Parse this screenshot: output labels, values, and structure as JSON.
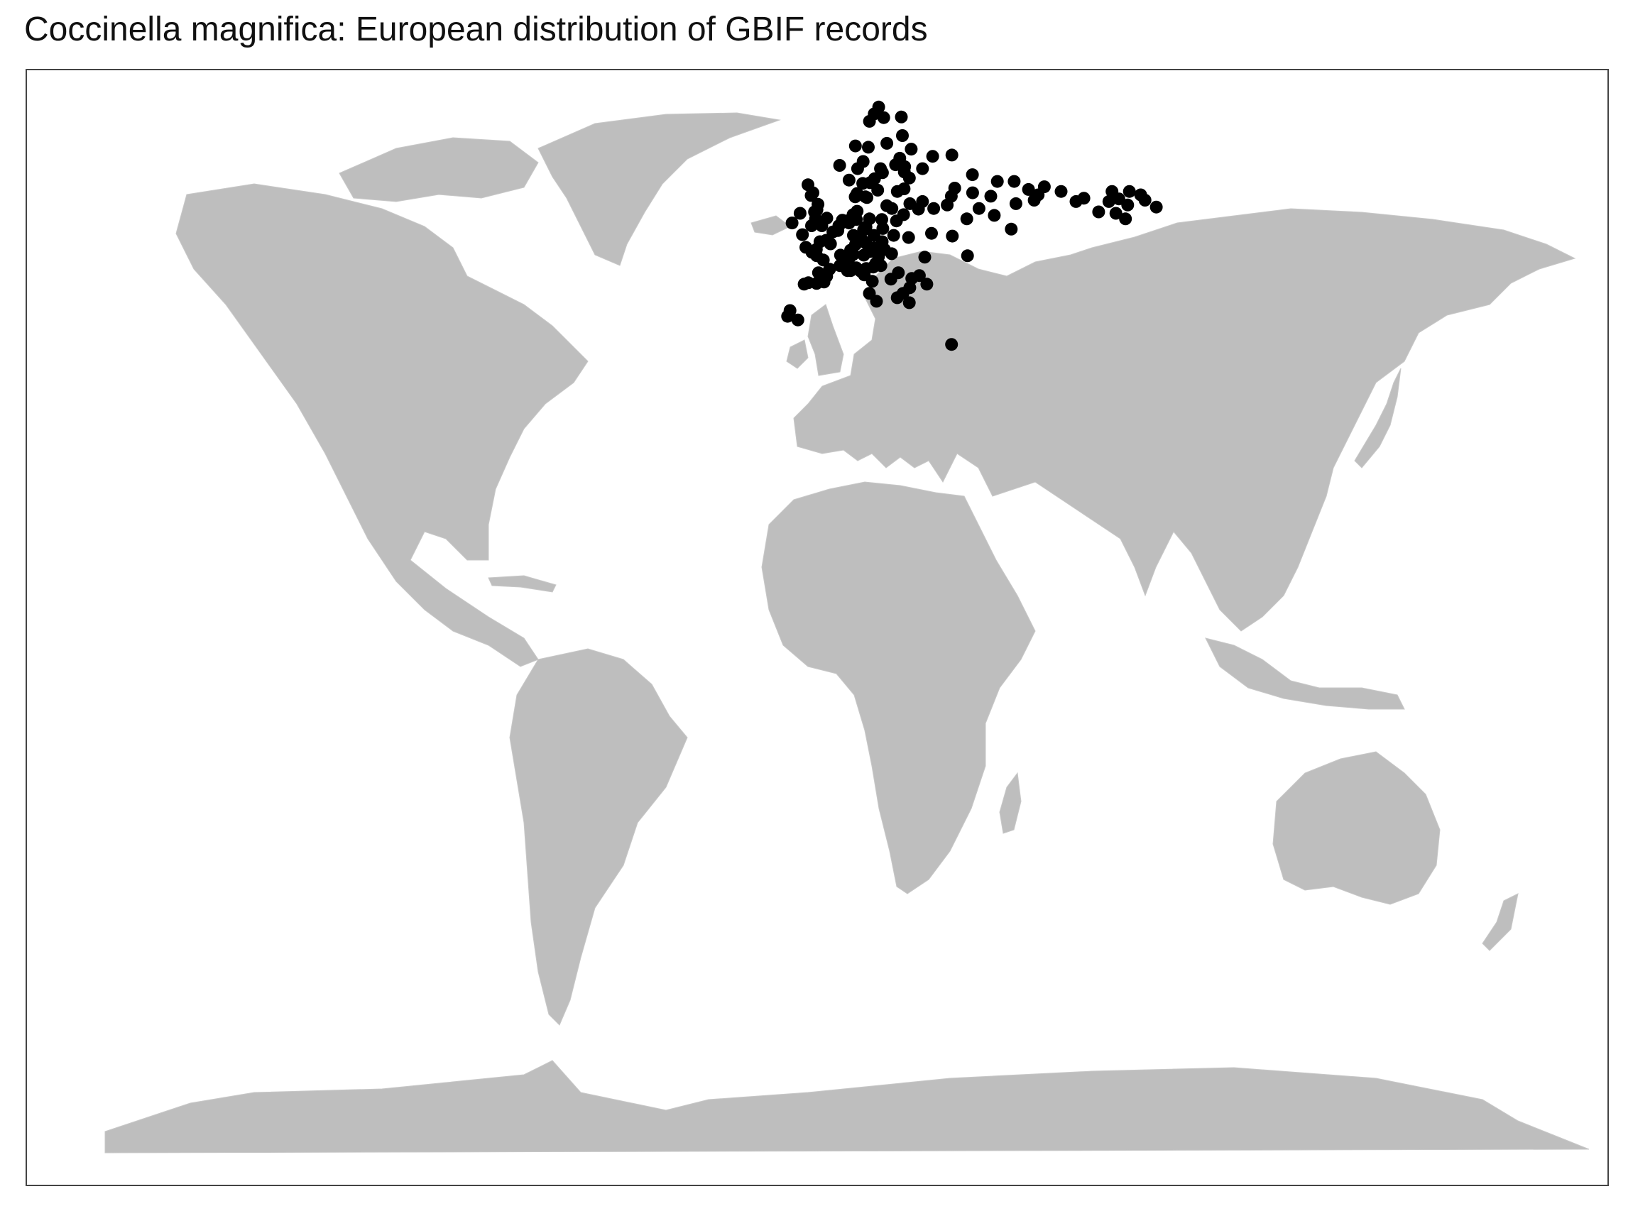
{
  "title": "Coccinella magnifica: European distribution of GBIF records",
  "colors": {
    "land": "#bebebe",
    "points": "#000000",
    "frame": "#444444",
    "background": "#ffffff"
  },
  "projection": "robinson",
  "chart_data": {
    "type": "scatter",
    "title": "Coccinella magnifica: European distribution of GBIF records",
    "xlabel": "",
    "ylabel": "",
    "grid": false,
    "legend": "none",
    "points_lonlat": [
      [
        -9.0,
        38.7
      ],
      [
        -8.4,
        39.5
      ],
      [
        -6.3,
        38.2
      ],
      [
        -4.8,
        43.2
      ],
      [
        -3.7,
        43.4
      ],
      [
        -1.5,
        43.3
      ],
      [
        -1.0,
        44.8
      ],
      [
        0.5,
        43.5
      ],
      [
        1.2,
        44.3
      ],
      [
        2.0,
        45.3
      ],
      [
        0.3,
        46.6
      ],
      [
        -1.5,
        47.2
      ],
      [
        -2.8,
        47.7
      ],
      [
        -4.5,
        48.4
      ],
      [
        -1.6,
        48.1
      ],
      [
        -0.6,
        49.2
      ],
      [
        1.1,
        49.4
      ],
      [
        2.3,
        48.9
      ],
      [
        3.0,
        50.6
      ],
      [
        4.4,
        50.8
      ],
      [
        4.7,
        51.5
      ],
      [
        5.7,
        52.3
      ],
      [
        6.9,
        52.2
      ],
      [
        7.6,
        51.9
      ],
      [
        8.7,
        50.1
      ],
      [
        9.2,
        48.8
      ],
      [
        7.8,
        48.0
      ],
      [
        8.5,
        47.4
      ],
      [
        7.4,
        46.9
      ],
      [
        6.1,
        46.2
      ],
      [
        5.0,
        47.3
      ],
      [
        4.8,
        45.8
      ],
      [
        6.8,
        45.1
      ],
      [
        7.7,
        45.1
      ],
      [
        9.2,
        45.5
      ],
      [
        10.4,
        45.0
      ],
      [
        11.3,
        44.5
      ],
      [
        11.9,
        45.4
      ],
      [
        12.5,
        41.9
      ],
      [
        14.3,
        40.8
      ],
      [
        13.4,
        43.6
      ],
      [
        11.4,
        47.3
      ],
      [
        13.0,
        47.8
      ],
      [
        14.3,
        48.3
      ],
      [
        16.4,
        48.2
      ],
      [
        15.4,
        47.1
      ],
      [
        14.5,
        46.1
      ],
      [
        13.8,
        45.6
      ],
      [
        12.3,
        51.3
      ],
      [
        13.4,
        52.5
      ],
      [
        11.6,
        50.9
      ],
      [
        10.0,
        53.6
      ],
      [
        8.8,
        53.1
      ],
      [
        9.7,
        52.4
      ],
      [
        11.0,
        49.5
      ],
      [
        12.1,
        49.0
      ],
      [
        14.4,
        50.1
      ],
      [
        16.6,
        49.2
      ],
      [
        17.1,
        48.1
      ],
      [
        19.0,
        47.5
      ],
      [
        21.0,
        52.2
      ],
      [
        19.9,
        50.1
      ],
      [
        17.0,
        51.1
      ],
      [
        16.9,
        52.4
      ],
      [
        18.6,
        54.4
      ],
      [
        23.2,
        53.1
      ],
      [
        25.3,
        54.7
      ],
      [
        24.1,
        56.9
      ],
      [
        24.7,
        59.4
      ],
      [
        25.0,
        60.2
      ],
      [
        22.3,
        60.5
      ],
      [
        23.8,
        61.5
      ],
      [
        27.7,
        62.9
      ],
      [
        25.5,
        65.0
      ],
      [
        26.0,
        68.0
      ],
      [
        20.3,
        63.8
      ],
      [
        18.1,
        59.3
      ],
      [
        17.6,
        59.9
      ],
      [
        16.3,
        56.7
      ],
      [
        15.6,
        58.4
      ],
      [
        13.0,
        55.6
      ],
      [
        14.2,
        57.8
      ],
      [
        12.0,
        57.7
      ],
      [
        10.7,
        59.9
      ],
      [
        10.4,
        63.4
      ],
      [
        5.3,
        60.4
      ],
      [
        8.0,
        58.2
      ],
      [
        9.6,
        55.7
      ],
      [
        12.6,
        55.7
      ],
      [
        10.2,
        56.2
      ],
      [
        12.5,
        61.0
      ],
      [
        14.4,
        63.2
      ],
      [
        15.4,
        67.3
      ],
      [
        18.9,
        69.6
      ],
      [
        17.2,
        68.5
      ],
      [
        20.2,
        67.9
      ],
      [
        -0.1,
        51.5
      ],
      [
        -1.9,
        52.5
      ],
      [
        -2.2,
        53.5
      ],
      [
        -1.5,
        53.8
      ],
      [
        -3.2,
        55.9
      ],
      [
        -4.2,
        57.5
      ],
      [
        -3.0,
        51.5
      ],
      [
        -5.5,
        50.2
      ],
      [
        -6.3,
        53.3
      ],
      [
        -8.5,
        51.9
      ],
      [
        1.3,
        52.6
      ],
      [
        -1.2,
        54.6
      ],
      [
        -2.7,
        56.3
      ],
      [
        30.3,
        59.9
      ],
      [
        37.6,
        55.8
      ],
      [
        44.0,
        56.3
      ],
      [
        49.1,
        55.8
      ],
      [
        55.9,
        54.7
      ],
      [
        60.6,
        56.8
      ],
      [
        61.4,
        55.2
      ],
      [
        65.5,
        57.2
      ],
      [
        73.4,
        55.0
      ],
      [
        76.0,
        55.5
      ],
      [
        82.9,
        55.0
      ],
      [
        84.9,
        56.5
      ],
      [
        86.1,
        55.4
      ],
      [
        83.8,
        53.3
      ],
      [
        86.0,
        52.5
      ],
      [
        92.9,
        56.0
      ],
      [
        93.5,
        55.2
      ],
      [
        96.0,
        54.2
      ],
      [
        39.7,
        47.2
      ],
      [
        36.2,
        50.0
      ],
      [
        30.5,
        50.4
      ],
      [
        24.0,
        49.8
      ],
      [
        28.0,
        47.0
      ],
      [
        26.1,
        44.4
      ],
      [
        23.3,
        42.7
      ],
      [
        21.4,
        41.9
      ],
      [
        22.9,
        40.6
      ],
      [
        33.1,
        34.8
      ],
      [
        40.0,
        62.0
      ],
      [
        34.0,
        61.8
      ],
      [
        39.0,
        57.0
      ],
      [
        45.0,
        59.0
      ],
      [
        52.0,
        58.0
      ],
      [
        57.0,
        58.0
      ],
      [
        63.0,
        56.0
      ],
      [
        70.0,
        56.5
      ],
      [
        79.0,
        53.5
      ],
      [
        88.0,
        54.5
      ],
      [
        90.0,
        56.5
      ],
      [
        49.0,
        53.0
      ],
      [
        53.0,
        51.0
      ],
      [
        45.0,
        54.0
      ],
      [
        41.0,
        52.5
      ],
      [
        36.0,
        54.5
      ],
      [
        32.0,
        54.0
      ],
      [
        27.6,
        53.9
      ],
      [
        24.0,
        44.0
      ],
      [
        27.9,
        43.2
      ],
      [
        19.8,
        41.3
      ],
      [
        20.5,
        44.8
      ],
      [
        18.4,
        43.9
      ],
      [
        15.9,
        45.8
      ],
      [
        20.0,
        54.0
      ],
      [
        22.0,
        56.5
      ],
      [
        26.0,
        58.5
      ],
      [
        29.0,
        55.0
      ]
    ]
  }
}
